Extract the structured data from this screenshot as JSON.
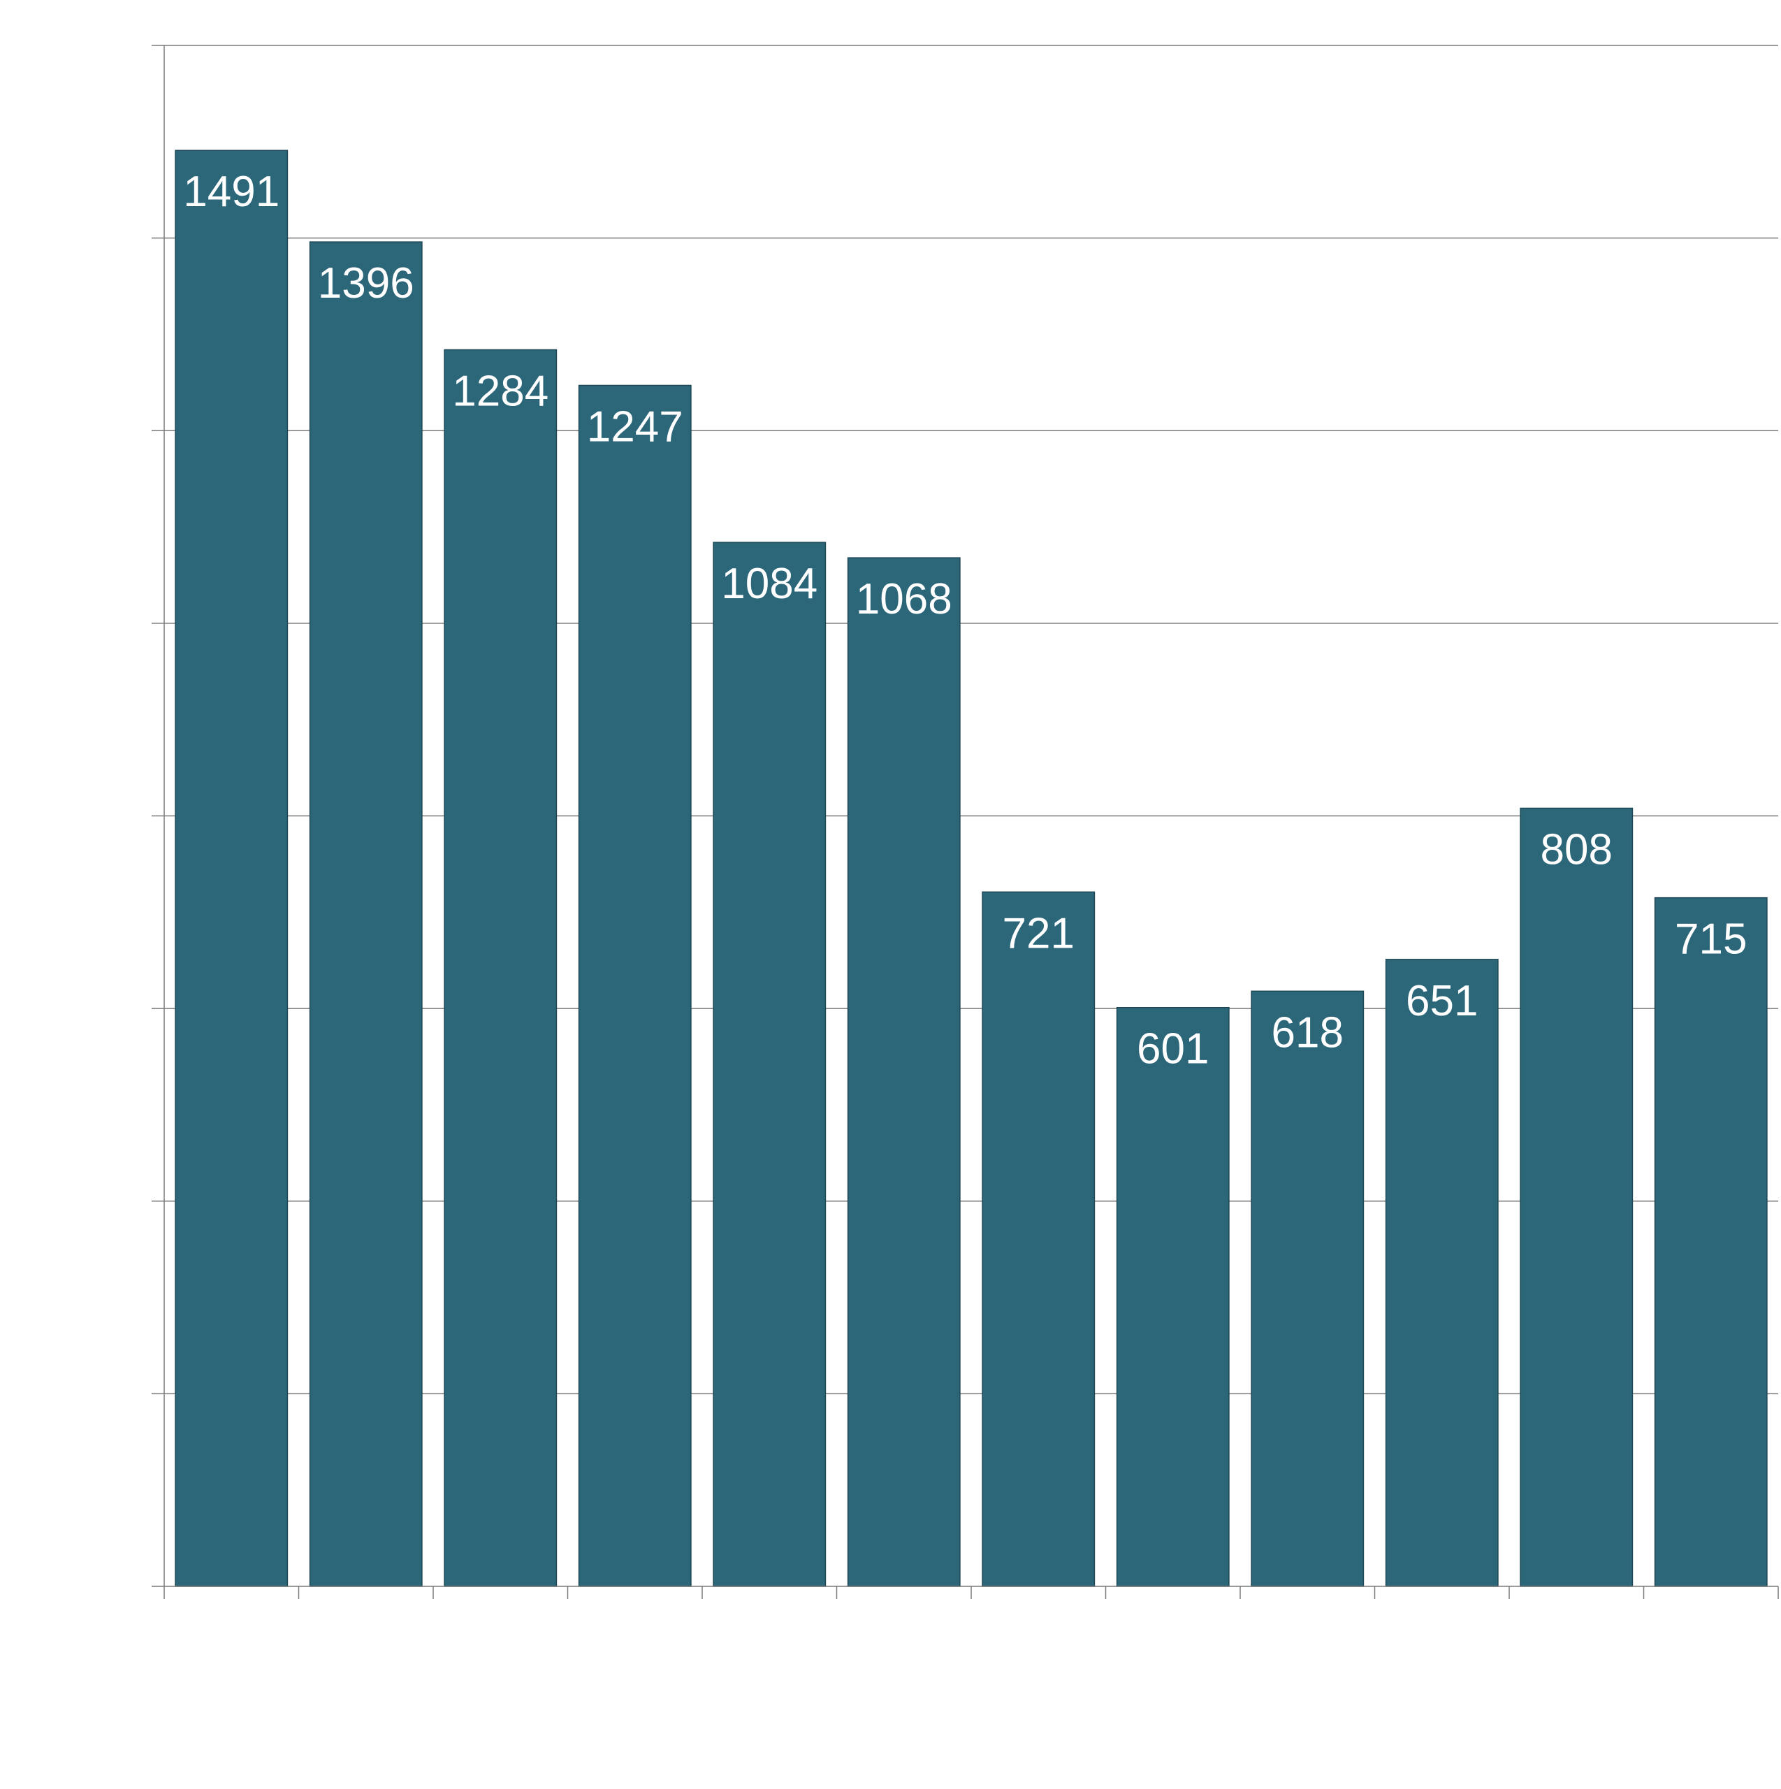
{
  "chart_data": {
    "type": "bar",
    "categories": [
      "",
      "",
      "",
      "",
      "",
      "",
      "",
      "",
      "",
      "",
      "",
      ""
    ],
    "values": [
      1491,
      1396,
      1284,
      1247,
      1084,
      1068,
      721,
      601,
      618,
      651,
      808,
      715
    ],
    "title": "",
    "xlabel": "",
    "ylabel": "",
    "ylim": [
      0,
      1600
    ],
    "grid": true,
    "data_labels": "inside-top",
    "colors": {
      "bar": "#2c6679",
      "bar_edge": "#1e4756",
      "grid": "#7a7a7a",
      "label": "#ffffff"
    }
  }
}
